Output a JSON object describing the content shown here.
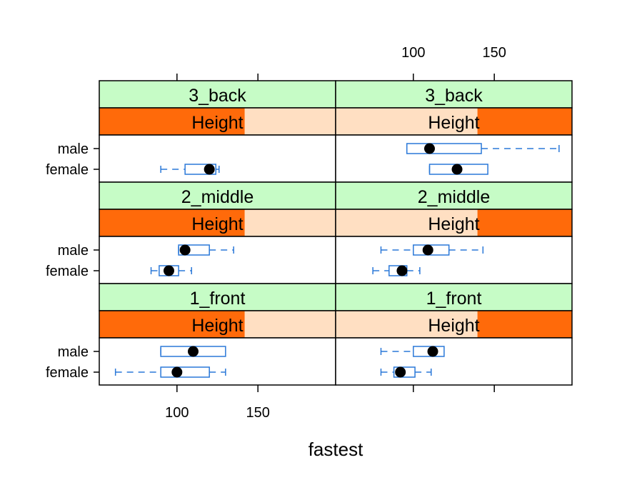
{
  "chart_data": {
    "type": "box",
    "xlabel": "fastest",
    "xlim": [
      52,
      198
    ],
    "x_ticks": [
      100,
      150
    ],
    "x_tick_labels": [
      "100",
      "150"
    ],
    "strip_factor_label": "Height",
    "categories": [
      "male",
      "female"
    ],
    "colors": {
      "strip_green": "#c6fcc6",
      "shingle_active": "#ff6a0a",
      "shingle_bg": "#ffdfc2",
      "box": "#2a78d8",
      "dot": "#000000"
    },
    "panels": [
      {
        "row": "3_back",
        "column": 1,
        "height_fill": [
          0,
          0.615
        ],
        "boxes": [
          {
            "group": "female",
            "whisker_low": 90,
            "q1": 105,
            "median": 120,
            "q3": 124,
            "whisker_high": 126
          }
        ]
      },
      {
        "row": "3_back",
        "column": 2,
        "height_fill": [
          0.6,
          1.0
        ],
        "boxes": [
          {
            "group": "male",
            "whisker_low": 96,
            "q1": 96,
            "median": 110,
            "q3": 142,
            "whisker_high": 190
          },
          {
            "group": "female",
            "whisker_low": 110,
            "q1": 110,
            "median": 127,
            "q3": 146,
            "whisker_high": 146
          }
        ]
      },
      {
        "row": "2_middle",
        "column": 1,
        "height_fill": [
          0,
          0.615
        ],
        "boxes": [
          {
            "group": "male",
            "whisker_low": 101,
            "q1": 101,
            "median": 105,
            "q3": 120,
            "whisker_high": 135
          },
          {
            "group": "female",
            "whisker_low": 84,
            "q1": 89,
            "median": 95,
            "q3": 101,
            "whisker_high": 109
          }
        ]
      },
      {
        "row": "2_middle",
        "column": 2,
        "height_fill": [
          0.6,
          1.0
        ],
        "boxes": [
          {
            "group": "male",
            "whisker_low": 80,
            "q1": 100,
            "median": 109,
            "q3": 122,
            "whisker_high": 143
          },
          {
            "group": "female",
            "whisker_low": 75,
            "q1": 85,
            "median": 93,
            "q3": 96,
            "whisker_high": 104
          }
        ]
      },
      {
        "row": "1_front",
        "column": 1,
        "height_fill": [
          0,
          0.615
        ],
        "boxes": [
          {
            "group": "male",
            "whisker_low": 90,
            "q1": 90,
            "median": 110,
            "q3": 130,
            "whisker_high": 130
          },
          {
            "group": "female",
            "whisker_low": 62,
            "q1": 90,
            "median": 100,
            "q3": 120,
            "whisker_high": 130
          }
        ]
      },
      {
        "row": "1_front",
        "column": 2,
        "height_fill": [
          0.6,
          1.0
        ],
        "boxes": [
          {
            "group": "male",
            "whisker_low": 80,
            "q1": 100,
            "median": 112,
            "q3": 119,
            "whisker_high": 119
          },
          {
            "group": "female",
            "whisker_low": 80,
            "q1": 88,
            "median": 92,
            "q3": 101,
            "whisker_high": 111
          }
        ]
      }
    ]
  }
}
